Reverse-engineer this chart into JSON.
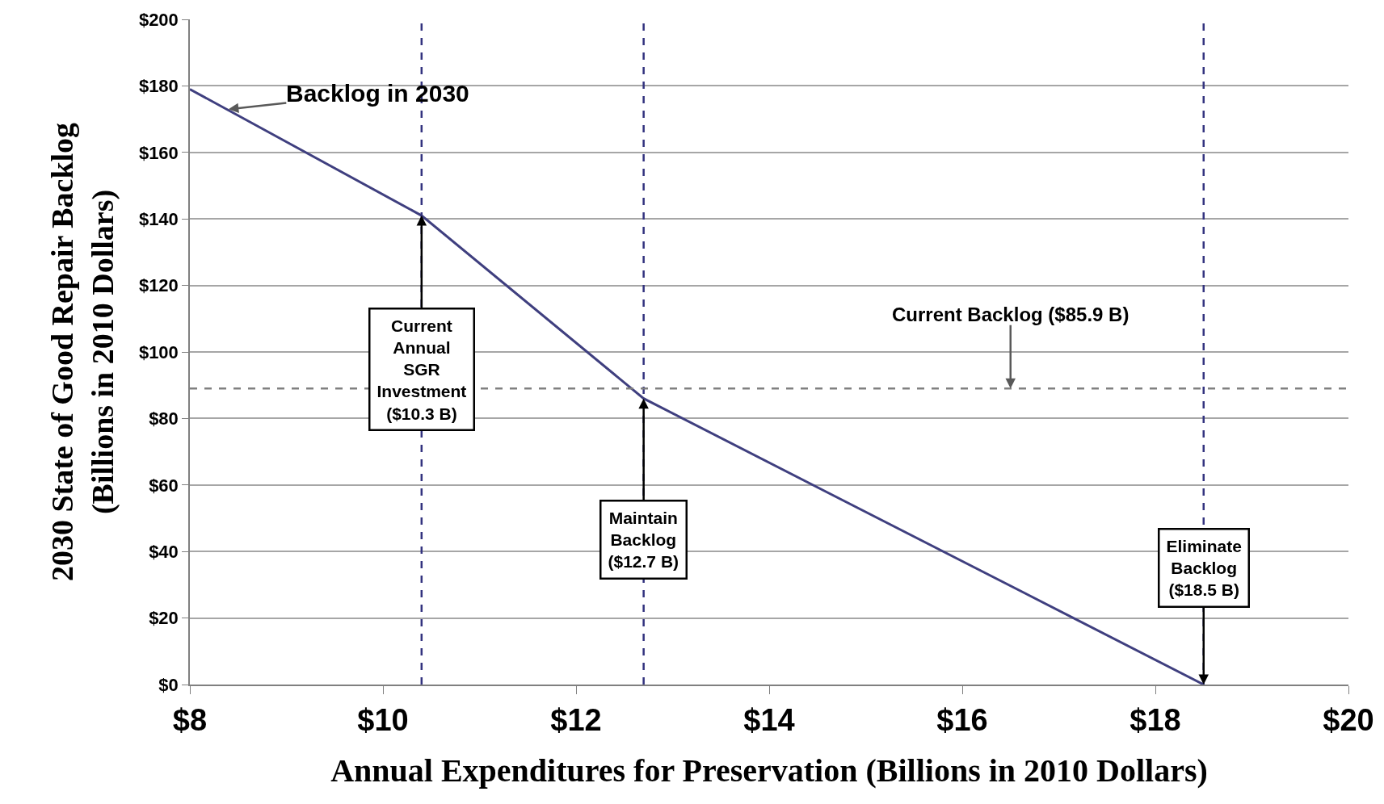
{
  "chart_data": {
    "type": "line",
    "xlabel": "Annual Expenditures for Preservation (Billions in 2010 Dollars)",
    "ylabel": "2030 State of Good Repair Backlog\n(Billions in 2010 Dollars)",
    "x": [
      8,
      10.4,
      12.7,
      18.5
    ],
    "series": [
      {
        "color": "#3f3f7f",
        "values": [
          179,
          141,
          86,
          0
        ]
      }
    ],
    "xlim": [
      8,
      20
    ],
    "xticks": [
      {
        "value": 8,
        "label": "$8"
      },
      {
        "value": 10,
        "label": "$10"
      },
      {
        "value": 12,
        "label": "$12"
      },
      {
        "value": 14,
        "label": "$14"
      },
      {
        "value": 16,
        "label": "$16"
      },
      {
        "value": 18,
        "label": "$18"
      },
      {
        "value": 20,
        "label": "$20"
      }
    ],
    "ylim": [
      0,
      200
    ],
    "yticks": [
      {
        "value": 0,
        "label": "$0"
      },
      {
        "value": 20,
        "label": "$20"
      },
      {
        "value": 40,
        "label": "$40"
      },
      {
        "value": 60,
        "label": "$60"
      },
      {
        "value": 80,
        "label": "$80"
      },
      {
        "value": 100,
        "label": "$100"
      },
      {
        "value": 120,
        "label": "$120"
      },
      {
        "value": 140,
        "label": "$140"
      },
      {
        "value": 160,
        "label": "$160"
      },
      {
        "value": 180,
        "label": "$180"
      },
      {
        "value": 200,
        "label": "$200"
      }
    ],
    "grid": "y",
    "legend": false,
    "marker": "none",
    "line_style": "solid",
    "ref_lines": [
      {
        "axis": "x",
        "value": 10.4,
        "color": "#33337f",
        "line_style": "dashed"
      },
      {
        "axis": "x",
        "value": 12.7,
        "color": "#33337f",
        "line_style": "dashed"
      },
      {
        "axis": "x",
        "value": 18.5,
        "color": "#33337f",
        "line_style": "dashed"
      },
      {
        "axis": "y",
        "value": 89,
        "color": "#808080",
        "line_style": "dashed"
      }
    ],
    "annotations": [
      {
        "text": "Backlog in 2030",
        "x": 8.4,
        "y": 173
      },
      {
        "text": "Current\nAnnual\nSGR\nInvestment\n($10.3 B)",
        "x": 10.4,
        "y": 141
      },
      {
        "text": "Current Backlog ($85.9 B)",
        "x": 16.5,
        "y": 89
      },
      {
        "text": "Maintain\nBacklog\n($12.7 B)",
        "x": 12.7,
        "y": 86
      },
      {
        "text": "Eliminate\nBacklog\n($18.5 B)",
        "x": 18.5,
        "y": 0
      }
    ]
  }
}
